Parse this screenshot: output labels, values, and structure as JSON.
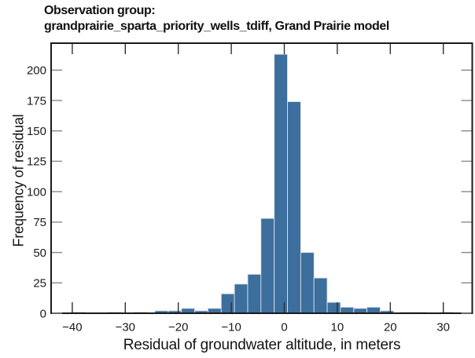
{
  "figure": {
    "title_line1": "Observation group:",
    "title_line2": "grandprairie_sparta_priority_wells_tdiff, Grand Prairie model",
    "x_axis_label": "Residual of groundwater altitude, in meters",
    "y_axis_label": "Frequency of residual"
  },
  "chart_data": {
    "type": "bar",
    "subtype": "histogram",
    "title": "Observation group: grandprairie_sparta_priority_wells_tdiff, Grand Prairie model",
    "xlabel": "Residual of groundwater altitude, in meters",
    "ylabel": "Frequency of residual",
    "xlim": [
      -44,
      35.5
    ],
    "ylim": [
      0,
      222
    ],
    "grid": false,
    "legend": false,
    "bin_width": 2.5,
    "x_ticks": [
      {
        "value": -40,
        "label": "−40"
      },
      {
        "value": -30,
        "label": "−30"
      },
      {
        "value": -20,
        "label": "−20"
      },
      {
        "value": -10,
        "label": "−10"
      },
      {
        "value": 0,
        "label": "0"
      },
      {
        "value": 10,
        "label": "10"
      },
      {
        "value": 20,
        "label": "20"
      },
      {
        "value": 30,
        "label": "30"
      }
    ],
    "y_ticks": [
      {
        "value": 0,
        "label": "0"
      },
      {
        "value": 25,
        "label": "25"
      },
      {
        "value": 50,
        "label": "50"
      },
      {
        "value": 75,
        "label": "75"
      },
      {
        "value": 100,
        "label": "100"
      },
      {
        "value": 125,
        "label": "125"
      },
      {
        "value": 150,
        "label": "150"
      },
      {
        "value": 175,
        "label": "175"
      },
      {
        "value": 200,
        "label": "200"
      }
    ],
    "bars": [
      {
        "from": -40.1,
        "to": -37.6,
        "count": 1
      },
      {
        "from": -33.2,
        "to": -30.7,
        "count": 1
      },
      {
        "from": -28.4,
        "to": -25.9,
        "count": 1
      },
      {
        "from": -24.4,
        "to": -21.9,
        "count": 2
      },
      {
        "from": -21.9,
        "to": -19.4,
        "count": 2
      },
      {
        "from": -19.4,
        "to": -16.9,
        "count": 4
      },
      {
        "from": -16.9,
        "to": -14.4,
        "count": 2
      },
      {
        "from": -14.4,
        "to": -11.9,
        "count": 4
      },
      {
        "from": -11.9,
        "to": -9.4,
        "count": 16
      },
      {
        "from": -9.4,
        "to": -6.9,
        "count": 24
      },
      {
        "from": -6.9,
        "to": -4.4,
        "count": 32
      },
      {
        "from": -4.4,
        "to": -1.9,
        "count": 78
      },
      {
        "from": -1.9,
        "to": 0.6,
        "count": 213
      },
      {
        "from": 0.6,
        "to": 3.1,
        "count": 174
      },
      {
        "from": 3.1,
        "to": 5.6,
        "count": 50
      },
      {
        "from": 5.6,
        "to": 8.1,
        "count": 29
      },
      {
        "from": 8.1,
        "to": 10.6,
        "count": 9
      },
      {
        "from": 10.6,
        "to": 13.1,
        "count": 5
      },
      {
        "from": 13.1,
        "to": 15.6,
        "count": 4
      },
      {
        "from": 15.6,
        "to": 18.1,
        "count": 5
      },
      {
        "from": 18.1,
        "to": 20.6,
        "count": 2
      },
      {
        "from": 21.9,
        "to": 24.4,
        "count": 1
      },
      {
        "from": 24.4,
        "to": 26.9,
        "count": 1
      },
      {
        "from": 29.4,
        "to": 31.9,
        "count": 1
      }
    ],
    "colors": {
      "bar_fill": "#3C6E9E",
      "bar_edge": "#DCE0E5",
      "spine": "#1A1A1A",
      "x_tick": "#2F2F2F",
      "y_tick": "#8A8A8A",
      "text": "#1A1A1A",
      "background": "#FFFFFF"
    }
  }
}
